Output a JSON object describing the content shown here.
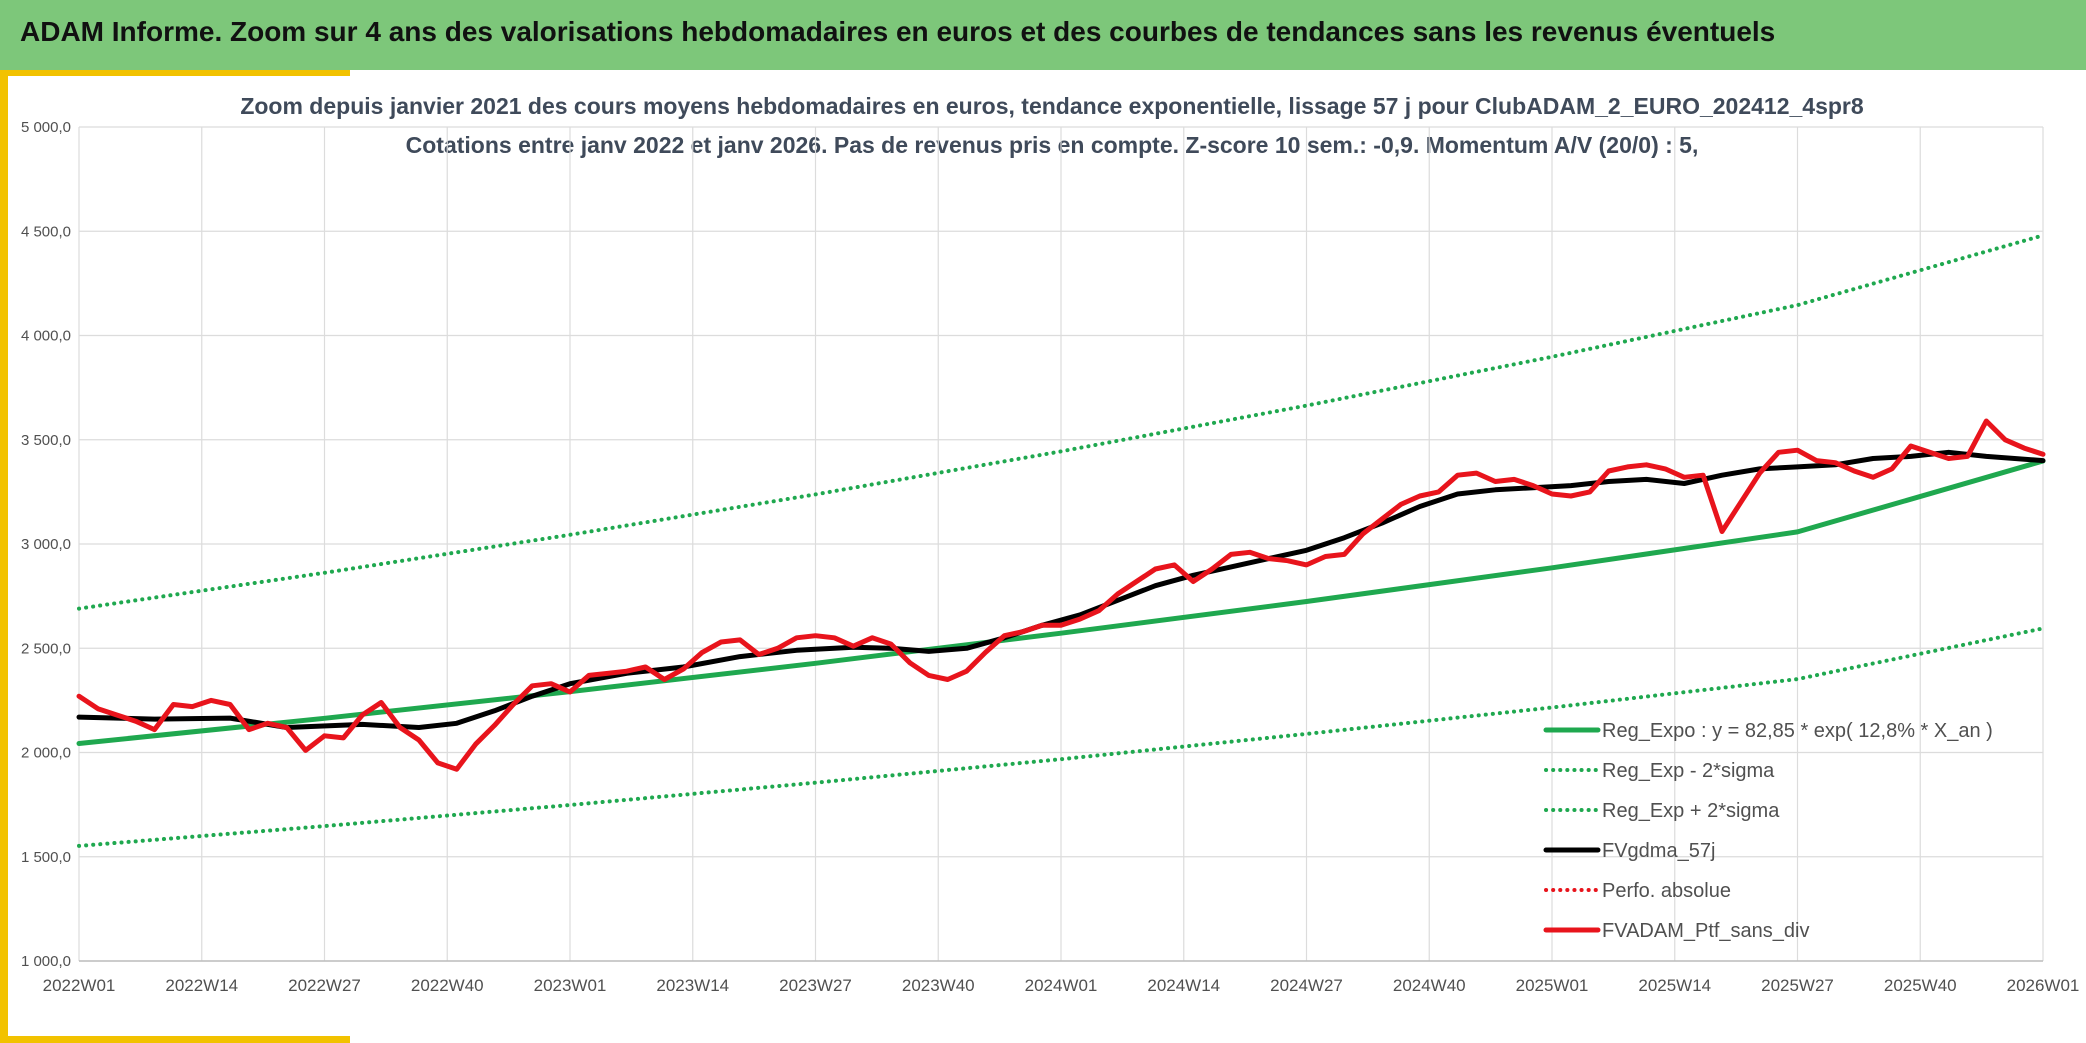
{
  "header": {
    "title": "ADAM Informe. Zoom sur 4 ans des valorisations hebdomadaires en euros et des courbes de tendances sans les revenus éventuels"
  },
  "colors": {
    "title_bar": "#7dc77a",
    "accent": "#f2c200",
    "trend": "#1fa84f",
    "band": "#1fa84f",
    "smooth": "#000000",
    "price": "#e8141c"
  },
  "chart_data": {
    "type": "line",
    "title": "Zoom depuis janvier 2021 des cours moyens hebdomadaires en euros, tendance exponentielle, lissage 57 j pour ClubADAM_2_EURO_202412_4spr8",
    "subtitle": "Cotations entre janv 2022 et janv 2026. Pas de revenus pris en compte. Z-score 10 sem.: -0,9. Momentum A/V (20/0) : 5,",
    "xlabel": "",
    "ylabel": "",
    "xlim": [
      0,
      208
    ],
    "ylim": [
      1000,
      5000
    ],
    "grid": true,
    "legend_position": "bottom-right",
    "x_ticks": [
      {
        "x": 0,
        "label": "2022W01"
      },
      {
        "x": 13,
        "label": "2022W14"
      },
      {
        "x": 26,
        "label": "2022W27"
      },
      {
        "x": 39,
        "label": "2022W40"
      },
      {
        "x": 52,
        "label": "2023W01"
      },
      {
        "x": 65,
        "label": "2023W14"
      },
      {
        "x": 78,
        "label": "2023W27"
      },
      {
        "x": 91,
        "label": "2023W40"
      },
      {
        "x": 104,
        "label": "2024W01"
      },
      {
        "x": 117,
        "label": "2024W14"
      },
      {
        "x": 130,
        "label": "2024W27"
      },
      {
        "x": 143,
        "label": "2024W40"
      },
      {
        "x": 156,
        "label": "2025W01"
      },
      {
        "x": 169,
        "label": "2025W14"
      },
      {
        "x": 182,
        "label": "2025W27"
      },
      {
        "x": 195,
        "label": "2025W40"
      },
      {
        "x": 208,
        "label": "2026W01"
      }
    ],
    "y_ticks": [
      {
        "y": 1000,
        "label": "1 000,0"
      },
      {
        "y": 1500,
        "label": "1 500,0"
      },
      {
        "y": 2000,
        "label": "2 000,0"
      },
      {
        "y": 2500,
        "label": "2 500,0"
      },
      {
        "y": 3000,
        "label": "3 000,0"
      },
      {
        "y": 3500,
        "label": "3 500,0"
      },
      {
        "y": 4000,
        "label": "4 000,0"
      },
      {
        "y": 4500,
        "label": "4 500,0"
      },
      {
        "y": 5000,
        "label": "5 000,0"
      }
    ],
    "series": [
      {
        "name": "Reg_Expo : y = 82,85 * exp( 12,8% *  X_an )",
        "style": "solid",
        "color": "#1fa84f",
        "width": 5,
        "x": [
          0,
          26,
          52,
          78,
          104,
          130,
          156,
          182,
          208
        ],
        "y": [
          2043,
          2164,
          2292,
          2428,
          2572,
          2724,
          2886,
          3058,
          3398
        ]
      },
      {
        "name": "Reg_Exp - 2*sigma",
        "style": "dotted",
        "color": "#1fa84f",
        "width": 4,
        "x": [
          0,
          26,
          52,
          78,
          104,
          130,
          156,
          182,
          208
        ],
        "y": [
          1552,
          1647,
          1748,
          1855,
          1968,
          2089,
          2216,
          2352,
          2595
        ]
      },
      {
        "name": "Reg_Exp + 2*sigma",
        "style": "dotted",
        "color": "#1fa84f",
        "width": 4,
        "x": [
          0,
          26,
          52,
          78,
          104,
          130,
          156,
          182,
          208
        ],
        "y": [
          2690,
          2862,
          3044,
          3238,
          3444,
          3664,
          3898,
          4146,
          4480
        ]
      },
      {
        "name": "FVgdma_57j",
        "style": "solid",
        "color": "#000000",
        "width": 5,
        "x": [
          0,
          8,
          16,
          22,
          30,
          36,
          40,
          44,
          48,
          52,
          58,
          64,
          70,
          76,
          82,
          86,
          90,
          94,
          98,
          102,
          106,
          110,
          114,
          118,
          122,
          126,
          130,
          134,
          138,
          142,
          146,
          150,
          154,
          158,
          162,
          166,
          170,
          174,
          178,
          182,
          186,
          190,
          194,
          198,
          202,
          208
        ],
        "y": [
          2170,
          2160,
          2165,
          2120,
          2135,
          2120,
          2140,
          2200,
          2270,
          2330,
          2380,
          2410,
          2460,
          2490,
          2505,
          2500,
          2485,
          2500,
          2550,
          2610,
          2660,
          2730,
          2800,
          2850,
          2890,
          2930,
          2970,
          3030,
          3100,
          3180,
          3240,
          3260,
          3270,
          3280,
          3300,
          3310,
          3290,
          3330,
          3360,
          3370,
          3380,
          3410,
          3420,
          3440,
          3420,
          3400
        ]
      },
      {
        "name": "Perfo. absolue",
        "style": "dotted",
        "color": "#e8141c",
        "width": 4,
        "x": [],
        "y": []
      },
      {
        "name": "FVADAM_Ptf_sans_div",
        "style": "solid",
        "color": "#e8141c",
        "width": 5,
        "x": [
          0,
          2,
          4,
          6,
          8,
          10,
          12,
          14,
          16,
          18,
          20,
          22,
          24,
          26,
          28,
          30,
          32,
          34,
          36,
          38,
          40,
          42,
          44,
          46,
          48,
          50,
          52,
          54,
          56,
          58,
          60,
          62,
          64,
          66,
          68,
          70,
          72,
          74,
          76,
          78,
          80,
          82,
          84,
          86,
          88,
          90,
          92,
          94,
          96,
          98,
          100,
          102,
          104,
          106,
          108,
          110,
          112,
          114,
          116,
          118,
          120,
          122,
          124,
          126,
          128,
          130,
          132,
          134,
          136,
          138,
          140,
          142,
          144,
          146,
          148,
          150,
          152,
          154,
          156,
          158,
          160,
          162,
          164,
          166,
          168,
          170,
          172,
          174,
          176,
          178,
          180,
          182,
          184,
          186,
          188,
          190,
          192,
          194,
          196,
          198,
          200,
          202,
          204,
          206,
          208
        ],
        "y": [
          2270,
          2210,
          2180,
          2150,
          2110,
          2230,
          2220,
          2250,
          2230,
          2110,
          2140,
          2120,
          2010,
          2080,
          2070,
          2180,
          2240,
          2120,
          2060,
          1950,
          1920,
          2040,
          2130,
          2230,
          2320,
          2330,
          2290,
          2370,
          2380,
          2390,
          2410,
          2350,
          2400,
          2480,
          2530,
          2540,
          2470,
          2500,
          2550,
          2560,
          2550,
          2510,
          2550,
          2520,
          2430,
          2370,
          2350,
          2390,
          2480,
          2560,
          2580,
          2610,
          2610,
          2640,
          2680,
          2760,
          2820,
          2880,
          2900,
          2820,
          2880,
          2950,
          2960,
          2930,
          2920,
          2900,
          2940,
          2950,
          3050,
          3120,
          3190,
          3230,
          3250,
          3330,
          3340,
          3300,
          3310,
          3280,
          3240,
          3230,
          3250,
          3350,
          3370,
          3380,
          3360,
          3320,
          3330,
          3060,
          3200,
          3340,
          3440,
          3450,
          3400,
          3390,
          3350,
          3320,
          3360,
          3470,
          3440,
          3410,
          3420,
          3590,
          3500,
          3460,
          3430
        ]
      }
    ]
  }
}
